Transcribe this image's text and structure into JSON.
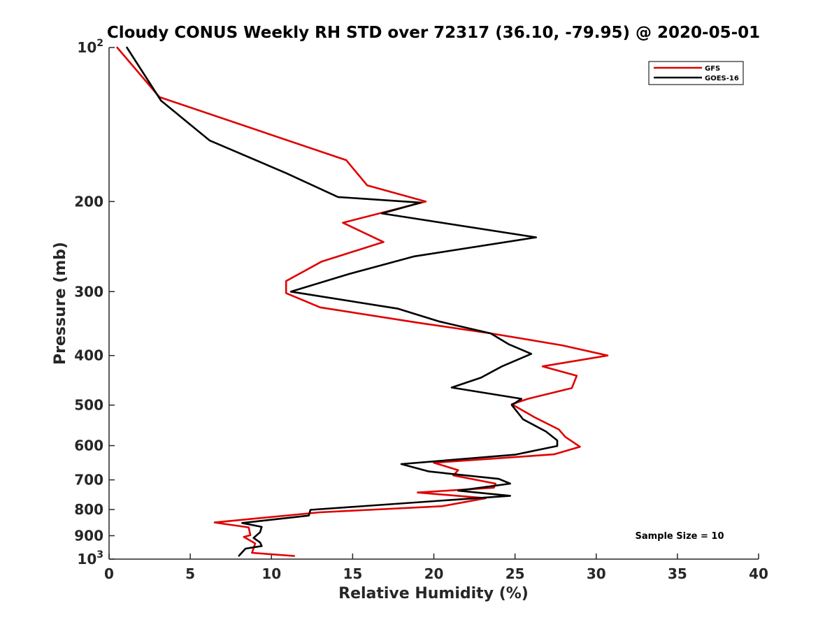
{
  "chart_data": {
    "type": "line",
    "title": "Cloudy CONUS Weekly RH STD over 72317 (36.10, -79.95) @ 2020-05-01",
    "xlabel": "Relative Humidity (%)",
    "ylabel": "Pressure (mb)",
    "xlim": [
      0,
      40
    ],
    "ylim": [
      100,
      1000
    ],
    "y_scale": "log",
    "y_reversed": true,
    "grid": false,
    "legend_position": "top-right",
    "x_ticks": [
      0,
      5,
      10,
      15,
      20,
      25,
      30,
      35,
      40
    ],
    "x_tick_labels": [
      "0",
      "5",
      "10",
      "15",
      "20",
      "25",
      "30",
      "35",
      "40"
    ],
    "y_ticks": [
      200,
      300,
      400,
      500,
      600,
      700,
      800,
      900
    ],
    "y_tick_labels": [
      "200",
      "300",
      "400",
      "500",
      "600",
      "700",
      "800",
      "900"
    ],
    "y_decade_ticks": [
      {
        "value": 100,
        "base": "10",
        "exponent": "2"
      },
      {
        "value": 1000,
        "base": "10",
        "exponent": "3"
      }
    ],
    "annotation": "Sample Size = 10",
    "series": [
      {
        "name": "GFS",
        "color": "#e00000",
        "points": [
          [
            0.5,
            100
          ],
          [
            3.1,
            125
          ],
          [
            14.6,
            166
          ],
          [
            15.9,
            186
          ],
          [
            19.5,
            200
          ],
          [
            14.4,
            220
          ],
          [
            16.9,
            240
          ],
          [
            13.1,
            262
          ],
          [
            10.9,
            286
          ],
          [
            10.9,
            302
          ],
          [
            13.0,
            322
          ],
          [
            19.0,
            345
          ],
          [
            23.5,
            362
          ],
          [
            27.9,
            382
          ],
          [
            30.7,
            400
          ],
          [
            26.7,
            420
          ],
          [
            28.8,
            438
          ],
          [
            28.5,
            463
          ],
          [
            25.8,
            486
          ],
          [
            24.8,
            498
          ],
          [
            26.2,
            528
          ],
          [
            27.7,
            558
          ],
          [
            28.1,
            577
          ],
          [
            29.0,
            603
          ],
          [
            27.4,
            624
          ],
          [
            20.0,
            648
          ],
          [
            21.5,
            670
          ],
          [
            21.2,
            686
          ],
          [
            23.8,
            712
          ],
          [
            23.7,
            725
          ],
          [
            19.0,
            741
          ],
          [
            23.2,
            760
          ],
          [
            20.5,
            788
          ],
          [
            13.0,
            810
          ],
          [
            6.5,
            848
          ],
          [
            8.6,
            867
          ],
          [
            8.7,
            898
          ],
          [
            8.3,
            905
          ],
          [
            9.0,
            932
          ],
          [
            8.8,
            972
          ],
          [
            11.4,
            986
          ]
        ]
      },
      {
        "name": "GOES-16",
        "color": "#000000",
        "points": [
          [
            1.1,
            100
          ],
          [
            3.2,
            127
          ],
          [
            6.2,
            152
          ],
          [
            10.9,
            176
          ],
          [
            14.1,
            196
          ],
          [
            19.2,
            201
          ],
          [
            16.8,
            211
          ],
          [
            26.3,
            235
          ],
          [
            18.8,
            256
          ],
          [
            14.8,
            277
          ],
          [
            11.2,
            300
          ],
          [
            17.8,
            324
          ],
          [
            20.3,
            343
          ],
          [
            23.5,
            362
          ],
          [
            24.6,
            380
          ],
          [
            26.0,
            397
          ],
          [
            24.2,
            420
          ],
          [
            22.9,
            442
          ],
          [
            21.1,
            462
          ],
          [
            25.4,
            486
          ],
          [
            24.8,
            500
          ],
          [
            25.5,
            533
          ],
          [
            26.9,
            563
          ],
          [
            27.6,
            586
          ],
          [
            27.6,
            601
          ],
          [
            25.0,
            625
          ],
          [
            18.0,
            652
          ],
          [
            19.7,
            674
          ],
          [
            24.0,
            697
          ],
          [
            24.7,
            712
          ],
          [
            21.5,
            735
          ],
          [
            24.7,
            752
          ],
          [
            12.4,
            801
          ],
          [
            12.3,
            822
          ],
          [
            8.2,
            850
          ],
          [
            9.4,
            865
          ],
          [
            9.3,
            886
          ],
          [
            8.9,
            909
          ],
          [
            9.3,
            928
          ],
          [
            9.4,
            943
          ],
          [
            8.4,
            954
          ],
          [
            8.0,
            985
          ]
        ]
      }
    ]
  }
}
